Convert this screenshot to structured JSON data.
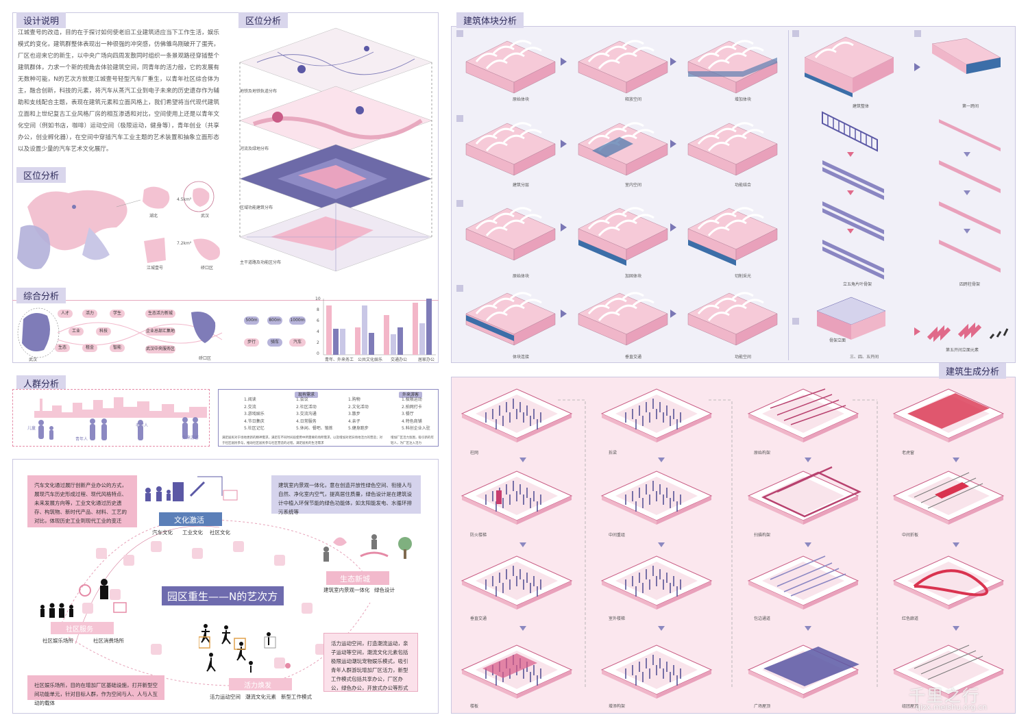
{
  "colors": {
    "accent_pink": "#e58aa6",
    "accent_blue": "#7f7cb8",
    "header_bg": "#d9d6ec",
    "panel_bg_lavender": "#f1f0f8",
    "panel_bg_pink": "#fbe7ee"
  },
  "left": {
    "design": {
      "title": "设计说明",
      "text": "江城壹号的改造，目的在于探讨如何使老旧工业建筑适应当下工作生活，娱乐模式的变化，建筑群整体表现出一种很强的冲突感，仿佛雏鸟刚破开了蛋壳，厂区也迎来它的新生，以中央广场向四周发散同时组织一条景观路径穿插整个建筑群体，力求一个新的视角去体验建筑空间，同青年的活力般，它的发展有无数种可能，N的艺次方就是江城壹号轻型汽车厂重生，以青年社区综合体为主，融合创新，科技的元素，将汽车从蒸汽工业到电子未来的历史遗存作为辅助和支线配合主题，表现在建筑元素和立面风格上，我们希望将当代现代建筑立面和上世纪复古工业风格厂房的相互渗透和对比，空间使用上还是以青年文化空间（例如书店，咖啡）运动空间（极限运动，健身等），青年创业（共享办公，创业孵化器），在空间中穿插汽车工业主题的艺术装置和抽象立面形态以及设置少量的汽车艺术文化展厅。"
    },
    "location": {
      "title": "区位分析",
      "maps": [
        "湖北",
        "武汉",
        "江城壹号",
        "硚口区"
      ],
      "scale_labels": [
        "4.5km²",
        "7.2km²"
      ]
    },
    "layers": {
      "title": "区位分析",
      "labels": [
        "地铁及地铁轨道分布",
        "河流及绿地分布",
        "区域功能建筑分布",
        "主干道路及功能区分布"
      ]
    },
    "comprehensive": {
      "title": "综合分析",
      "map_labels": [
        "武汉",
        "硚口区"
      ],
      "pills_pink": [
        "人才",
        "活力",
        "学生",
        "工业",
        "科技",
        "生态",
        "租金",
        "智能"
      ],
      "pills_center": [
        "生态活力新城",
        "企业总部汇集地",
        "武汉中央服务区"
      ],
      "pills_blue": [
        "500m",
        "800m",
        "1000m",
        "步行",
        "骑车",
        "汽车"
      ],
      "chart_categories": [
        "青年、外来务工",
        "公共文化娱乐",
        "交通办公",
        "居家办公"
      ],
      "y_ticks": [
        "10",
        "8",
        "6",
        "4",
        "2",
        "0"
      ]
    },
    "crowd": {
      "title": "人群分析",
      "people_labels": [
        "儿童",
        "青年人",
        "老年人",
        "外来游客"
      ],
      "needs_col1_header": "现有需求",
      "needs_col2_header": "外来游客",
      "needs_col1": [
        "1.阅读",
        "2.交流",
        "3.游戏娱乐",
        "4.节日集庆",
        "5.社区记忆"
      ],
      "needs_col2": [
        "1.会议",
        "2.社区活动",
        "3.交流沟通",
        "4.日常服务",
        "5.休闲、餐吧、锻炼"
      ],
      "needs_col3": [
        "1.购物",
        "2.文化活动",
        "3.散步",
        "4.亲子",
        "5.健身跑步"
      ],
      "needs_col4": [
        "1.极限运动",
        "2.拍网打卡",
        "3.餐厅",
        "4.特色商铺",
        "5.科创企业入驻"
      ],
      "footer_left": "满足居民对于场地更新的精神需求，满足在不同时间段使用中所需要的场所需求，以及增加对老旧场地活力的营造；对于社区居民参与，推动社区居民参与社区营造的过程，满足居民的生活需求",
      "footer_right": "增加厂区活力氛围，吸引新的年轻人，为厂区注入活力"
    },
    "concept": {
      "title": "园区重生——N的艺次方",
      "culture": {
        "title": "文化激活",
        "items": [
          "汽车文化",
          "工业文化",
          "社区文化"
        ]
      },
      "eco": {
        "title": "生态新城",
        "items": [
          "建筑室内景观一体化",
          "绿色设计"
        ]
      },
      "community": {
        "title": "社区服务",
        "items": [
          "社区娱乐场所",
          "社区消费场所"
        ]
      },
      "vitality": {
        "title": "活力焕发",
        "items": [
          "活力运动空间",
          "潮流文化元素",
          "新型工作模式"
        ]
      },
      "box_top_left": "汽车文化通过展厅创新产业办公的方式，展现汽车历史形成过程、现代风格特点、未来发展方向等，工业文化通过历史遗存、构筑物、新时代产品、材料、工艺的对比，体现历史工业到现代工业的变迁",
      "box_top_right": "建筑室内景观一体化，意在创造开放性绿色空间、衔接人与自然、净化室内空气，提高居住质量，绿色设计是在建筑设计中植入环保节能的绿色功能体，如太阳能发电、水循环排污系统等",
      "box_bottom_left": "社区娱乐场所，目的在增加厂区基础设施，打开新型空间功能单元，针对目标人群，作为空间与人、人与人互动的载体",
      "box_bottom_right": "活力运动空间，打造潮流运动，亲子运动等空间，潮流文化元素包括极限运动潮玩宠物娱乐模式，吸引青年人群游玩增加厂区活力，新型工作模式包括共享办公，厂区办公，绿色办公，开放式办公等形式"
    }
  },
  "right": {
    "blocks": {
      "title": "建筑体块分析",
      "captions_row1": [
        "原始体块",
        "释放空间",
        "增加体块"
      ],
      "captions_row2": [
        "建筑分层",
        "室内空间",
        "功能结合"
      ],
      "captions_row3": [
        "原始体块",
        "加固体块",
        "切削采光"
      ],
      "captions_row4": [
        "体块连接",
        "垂直交通",
        "功能空间"
      ],
      "right_captions": [
        "建筑整体",
        "第一跨间",
        "立五角片叶骨架",
        "四跨柱骨架",
        "骨架立面",
        "三、四、五开间",
        "第五开间立面元素"
      ]
    },
    "generation": {
      "title": "建筑生成分析",
      "col1": [
        "柱网",
        "防火楼梯",
        "垂直交通",
        "楼板"
      ],
      "col2": [
        "拆梁",
        "中间重组",
        "室外楼梯",
        "增添构架"
      ],
      "col3": [
        "原始构架",
        "扫描构架",
        "包边通道",
        "广场屋顶"
      ],
      "col4": [
        "老虎窗",
        "中间折板",
        "红色廊道",
        "组团屋顶"
      ]
    }
  },
  "watermark": {
    "brand": "千里之行",
    "url": "qizx.meishu.org.cn"
  }
}
